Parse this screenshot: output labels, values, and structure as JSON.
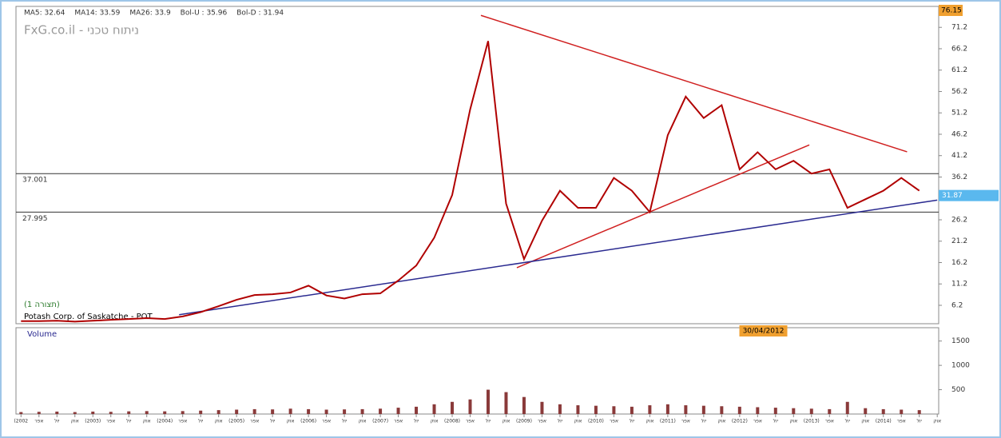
{
  "chart_data": [
    {
      "type": "line",
      "title": "Potash Corp. of Saskatche - POT",
      "subtitle": "(תצורה 1)",
      "watermark": "FxG.co.il - ניתוח טכני",
      "indicators": [
        {
          "label": "MA5: 32.64",
          "color": "#d00000"
        },
        {
          "label": "MA14: 33.59",
          "color": "#2020c0"
        },
        {
          "label": "MA26: 33.9",
          "color": "#208020"
        },
        {
          "label": "Bol-U : 35.96",
          "color": "#d00000"
        },
        {
          "label": "Bol-D : 31.94",
          "color": "#208020"
        }
      ],
      "x": [
        2002,
        2002.25,
        2002.5,
        2002.75,
        2003,
        2003.25,
        2003.5,
        2003.75,
        2004,
        2004.25,
        2004.5,
        2004.75,
        2005,
        2005.25,
        2005.5,
        2005.75,
        2006,
        2006.25,
        2006.5,
        2006.75,
        2007,
        2007.25,
        2007.5,
        2007.75,
        2008,
        2008.25,
        2008.5,
        2008.75,
        2009,
        2009.25,
        2009.5,
        2009.75,
        2010,
        2010.25,
        2010.5,
        2010.75,
        2011,
        2011.25,
        2011.5,
        2011.75,
        2012,
        2012.25,
        2012.5,
        2012.75,
        2013,
        2013.25,
        2013.5,
        2013.75,
        2014,
        2014.25,
        2014.5
      ],
      "series": [
        {
          "color": "#b00000",
          "values": [
            2.5,
            2.5,
            2.6,
            2.4,
            2.6,
            2.8,
            3.0,
            3.2,
            3.0,
            3.6,
            4.6,
            6.0,
            7.5,
            8.6,
            8.8,
            9.2,
            10.8,
            8.5,
            7.8,
            8.8,
            9.0,
            12.0,
            15.5,
            22.0,
            32.0,
            52.0,
            68.0,
            30.0,
            17.0,
            26.0,
            33.0,
            29.0,
            29.0,
            36.0,
            33.0,
            28.0,
            46.0,
            55.0,
            50.0,
            53.0,
            38.0,
            42.0,
            38.0,
            40.0,
            37.0,
            38.0,
            29.0,
            31.0,
            33.0,
            36.0,
            33.0
          ]
        }
      ],
      "xlim": [
        2001.93,
        2014.77
      ],
      "ylim": [
        1.9,
        76.1
      ],
      "yticks": [
        6.2,
        11.2,
        16.2,
        21.2,
        26.2,
        31.2,
        36.2,
        41.2,
        46.2,
        51.2,
        56.2,
        61.2,
        66.2,
        71.2
      ],
      "hlines": [
        37.001,
        27.995
      ],
      "high_value": 76.15,
      "last_value": 31.87,
      "trendlines": [
        {
          "color": "#d02020",
          "points": [
            [
              2008.4,
              74.0
            ],
            [
              2014.33,
              42.1
            ]
          ]
        },
        {
          "color": "#d02020",
          "points": [
            [
              2008.9,
              15.0
            ],
            [
              2012.97,
              43.7
            ]
          ]
        },
        {
          "color": "#2a2a90",
          "points": [
            [
              2004.2,
              4.0
            ],
            [
              2014.75,
              30.8
            ]
          ]
        }
      ]
    },
    {
      "type": "bar",
      "title": "Volume",
      "annotation": "30/04/2012",
      "color": "#8a3a3a",
      "x": [
        2002,
        2002.25,
        2002.5,
        2002.75,
        2003,
        2003.25,
        2003.5,
        2003.75,
        2004,
        2004.25,
        2004.5,
        2004.75,
        2005,
        2005.25,
        2005.5,
        2005.75,
        2006,
        2006.25,
        2006.5,
        2006.75,
        2007,
        2007.25,
        2007.5,
        2007.75,
        2008,
        2008.25,
        2008.5,
        2008.75,
        2009,
        2009.25,
        2009.5,
        2009.75,
        2010,
        2010.25,
        2010.5,
        2010.75,
        2011,
        2011.25,
        2011.5,
        2011.75,
        2012,
        2012.25,
        2012.5,
        2012.75,
        2013,
        2013.25,
        2013.5,
        2013.75,
        2014,
        2014.25,
        2014.5
      ],
      "values": [
        40,
        45,
        50,
        40,
        50,
        45,
        55,
        60,
        55,
        60,
        70,
        80,
        90,
        100,
        95,
        110,
        100,
        90,
        95,
        100,
        110,
        130,
        150,
        200,
        250,
        300,
        500,
        450,
        350,
        250,
        200,
        180,
        170,
        160,
        150,
        180,
        200,
        180,
        170,
        160,
        150,
        140,
        130,
        120,
        110,
        100,
        250,
        120,
        100,
        90,
        80
      ],
      "xlim": [
        2001.93,
        2014.77
      ],
      "ylim": [
        0,
        1774
      ],
      "yticks": [
        500,
        1000,
        1500
      ],
      "xticks": [
        {
          "value": 2002,
          "label": "(2002"
        },
        {
          "value": 2002.25,
          "label": "אפר"
        },
        {
          "value": 2002.5,
          "label": "יול"
        },
        {
          "value": 2002.75,
          "label": "אוק"
        },
        {
          "value": 2003,
          "label": "(2003)"
        },
        {
          "value": 2003.25,
          "label": "אפר"
        },
        {
          "value": 2003.5,
          "label": "יול"
        },
        {
          "value": 2003.75,
          "label": "אוק"
        },
        {
          "value": 2004,
          "label": "(2004)"
        },
        {
          "value": 2004.25,
          "label": "אפר"
        },
        {
          "value": 2004.5,
          "label": "יול"
        },
        {
          "value": 2004.75,
          "label": "אוק"
        },
        {
          "value": 2005,
          "label": "(2005)"
        },
        {
          "value": 2005.25,
          "label": "אפר"
        },
        {
          "value": 2005.5,
          "label": "יול"
        },
        {
          "value": 2005.75,
          "label": "אוק"
        },
        {
          "value": 2006,
          "label": "(2006)"
        },
        {
          "value": 2006.25,
          "label": "אפר"
        },
        {
          "value": 2006.5,
          "label": "יול"
        },
        {
          "value": 2006.75,
          "label": "אוק"
        },
        {
          "value": 2007,
          "label": "(2007)"
        },
        {
          "value": 2007.25,
          "label": "אפר"
        },
        {
          "value": 2007.5,
          "label": "יול"
        },
        {
          "value": 2007.75,
          "label": "אוק"
        },
        {
          "value": 2008,
          "label": "(2008)"
        },
        {
          "value": 2008.25,
          "label": "אפר"
        },
        {
          "value": 2008.5,
          "label": "יול"
        },
        {
          "value": 2008.75,
          "label": "אוק"
        },
        {
          "value": 2009,
          "label": "(2009)"
        },
        {
          "value": 2009.25,
          "label": "אפר"
        },
        {
          "value": 2009.5,
          "label": "יול"
        },
        {
          "value": 2009.75,
          "label": "אוק"
        },
        {
          "value": 2010,
          "label": "(2010)"
        },
        {
          "value": 2010.25,
          "label": "אפר"
        },
        {
          "value": 2010.5,
          "label": "יול"
        },
        {
          "value": 2010.75,
          "label": "אוק"
        },
        {
          "value": 2011,
          "label": "(2011)"
        },
        {
          "value": 2011.25,
          "label": "אפר"
        },
        {
          "value": 2011.5,
          "label": "יול"
        },
        {
          "value": 2011.75,
          "label": "אוק"
        },
        {
          "value": 2012,
          "label": "(2012)"
        },
        {
          "value": 2012.25,
          "label": "אפר"
        },
        {
          "value": 2012.5,
          "label": "יול"
        },
        {
          "value": 2012.75,
          "label": "אוק"
        },
        {
          "value": 2013,
          "label": "(2013)"
        },
        {
          "value": 2013.25,
          "label": "אפר"
        },
        {
          "value": 2013.5,
          "label": "יול"
        },
        {
          "value": 2013.75,
          "label": "אוק"
        },
        {
          "value": 2014,
          "label": "(2014)"
        },
        {
          "value": 2014.25,
          "label": "אפר"
        },
        {
          "value": 2014.5,
          "label": "יול"
        },
        {
          "value": 2014.75,
          "label": "אוק"
        }
      ]
    }
  ]
}
